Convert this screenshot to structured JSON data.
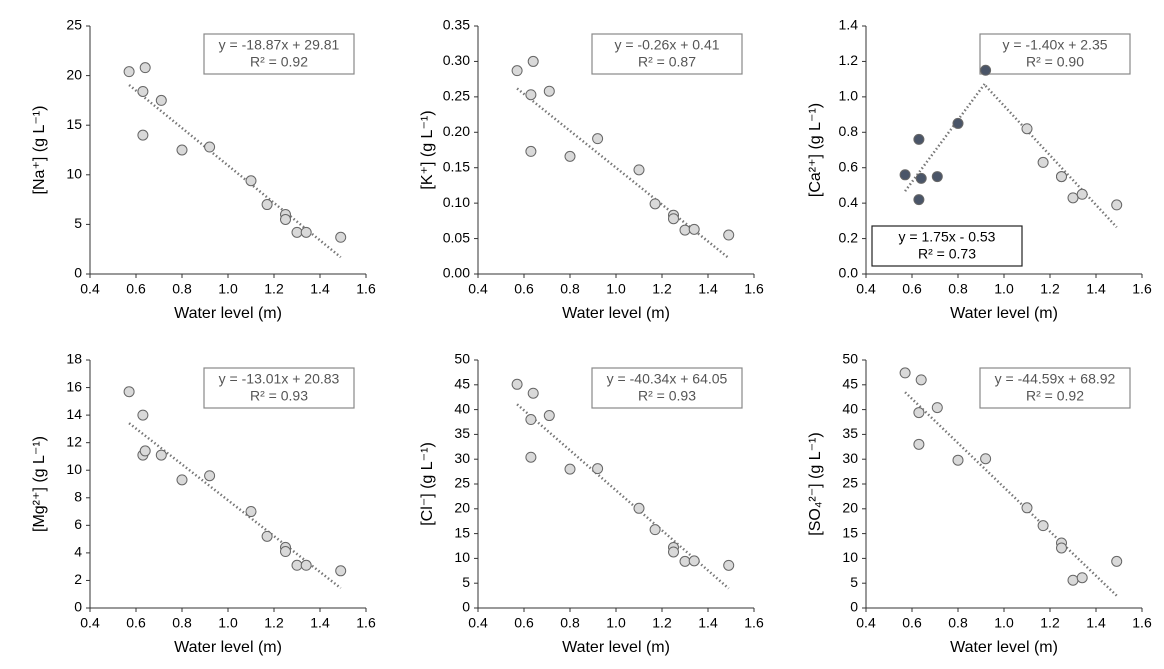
{
  "chart_data": [
    {
      "type": "scatter",
      "xlabel": "Water level (m)",
      "ylabel": "[Na⁺] (g L⁻¹)",
      "x": [
        0.57,
        0.63,
        0.63,
        0.64,
        0.71,
        0.8,
        0.92,
        1.1,
        1.17,
        1.25,
        1.25,
        1.3,
        1.34,
        1.49
      ],
      "series": [
        {
          "color": "#d9d9d9",
          "values": [
            20.4,
            18.4,
            14.0,
            20.8,
            17.5,
            12.5,
            12.8,
            9.4,
            7.0,
            6.0,
            5.5,
            4.2,
            4.2,
            3.7
          ]
        }
      ],
      "trendlines": [
        {
          "equation": "y = -18.87x + 29.81",
          "r2": "R² = 0.92",
          "slope": -18.87,
          "intercept": 29.81,
          "xlim": [
            0.57,
            1.49
          ],
          "label_corner": "top-right"
        }
      ],
      "xlim": [
        0.4,
        1.6
      ],
      "xticks": [
        0.4,
        0.6,
        0.8,
        {
          "value": 1,
          "label": "1.0"
        },
        1.2,
        1.4,
        1.6
      ],
      "ylim": [
        0,
        25
      ],
      "yticks": [
        0,
        5,
        10,
        15,
        20,
        25
      ]
    },
    {
      "type": "scatter",
      "xlabel": "Water level (m)",
      "ylabel": "[K⁺] (g L⁻¹)",
      "x": [
        0.57,
        0.63,
        0.63,
        0.64,
        0.71,
        0.8,
        0.92,
        1.1,
        1.17,
        1.25,
        1.25,
        1.3,
        1.34,
        1.49
      ],
      "series": [
        {
          "color": "#d9d9d9",
          "values": [
            0.287,
            0.253,
            0.173,
            0.3,
            0.258,
            0.166,
            0.191,
            0.147,
            0.099,
            0.083,
            0.078,
            0.062,
            0.063,
            0.055
          ]
        }
      ],
      "trendlines": [
        {
          "equation": "y = -0.26x + 0.41",
          "r2": "R² = 0.87",
          "slope": -0.26,
          "intercept": 0.41,
          "xlim": [
            0.57,
            1.49
          ],
          "label_corner": "top-right"
        }
      ],
      "xlim": [
        0.4,
        1.6
      ],
      "xticks": [
        0.4,
        0.6,
        0.8,
        {
          "value": 1,
          "label": "1.0"
        },
        1.2,
        1.4,
        1.6
      ],
      "ylim": [
        0,
        0.35
      ],
      "yticks": [
        {
          "value": 0,
          "label": "0.00"
        },
        0.05,
        {
          "value": 0.1,
          "label": "0.10"
        },
        0.15,
        {
          "value": 0.2,
          "label": "0.20"
        },
        0.25,
        {
          "value": 0.3,
          "label": "0.30"
        },
        0.35
      ]
    },
    {
      "type": "scatter",
      "xlabel": "Water level (m)",
      "ylabel": "[Ca²⁺] (g L⁻¹)",
      "x": [
        0.57,
        0.63,
        0.63,
        0.64,
        0.71,
        0.8,
        0.92,
        1.1,
        1.17,
        1.25,
        1.25,
        1.3,
        1.34,
        1.49
      ],
      "series": [
        {
          "color": "#4a5568",
          "values": [
            0.56,
            0.76,
            0.42,
            0.54,
            0.55,
            0.85,
            1.15,
            null,
            null,
            null,
            null,
            null,
            null,
            null
          ]
        },
        {
          "color": "#d9d9d9",
          "values": [
            null,
            null,
            null,
            null,
            null,
            null,
            null,
            0.82,
            0.63,
            0.55,
            0.55,
            0.43,
            0.45,
            0.39
          ]
        }
      ],
      "trendlines": [
        {
          "equation": "y = 1.75x - 0.53",
          "r2": "R² = 0.73",
          "slope": 1.75,
          "intercept": -0.53,
          "xlim": [
            0.57,
            0.92
          ],
          "label_corner": "bottom-left"
        },
        {
          "equation": "y = -1.40x + 2.35",
          "r2": "R² = 0.90",
          "slope": -1.4,
          "intercept": 2.35,
          "xlim": [
            0.92,
            1.49
          ],
          "label_corner": "top-right"
        }
      ],
      "xlim": [
        0.4,
        1.6
      ],
      "xticks": [
        0.4,
        0.6,
        0.8,
        {
          "value": 1,
          "label": "1.0"
        },
        1.2,
        1.4,
        1.6
      ],
      "ylim": [
        0,
        1.4
      ],
      "yticks": [
        {
          "value": 0,
          "label": "0.0"
        },
        0.2,
        0.4,
        0.6,
        0.8,
        {
          "value": 1,
          "label": "1.0"
        },
        1.2,
        1.4
      ]
    },
    {
      "type": "scatter",
      "xlabel": "Water level (m)",
      "ylabel": "[Mg²⁺] (g L⁻¹)",
      "x": [
        0.57,
        0.63,
        0.63,
        0.64,
        0.71,
        0.8,
        0.92,
        1.1,
        1.17,
        1.25,
        1.25,
        1.3,
        1.34,
        1.49
      ],
      "series": [
        {
          "color": "#d9d9d9",
          "values": [
            15.7,
            11.1,
            14.0,
            11.4,
            11.1,
            9.3,
            9.6,
            7.0,
            5.2,
            4.4,
            4.1,
            3.1,
            3.1,
            2.7
          ]
        }
      ],
      "trendlines": [
        {
          "equation": "y = -13.01x + 20.83",
          "r2": "R² = 0.93",
          "slope": -13.01,
          "intercept": 20.83,
          "xlim": [
            0.57,
            1.49
          ],
          "label_corner": "top-right"
        }
      ],
      "xlim": [
        0.4,
        1.6
      ],
      "xticks": [
        0.4,
        0.6,
        0.8,
        {
          "value": 1,
          "label": "1.0"
        },
        1.2,
        1.4,
        1.6
      ],
      "ylim": [
        0,
        18
      ],
      "yticks": [
        0,
        2,
        4,
        6,
        8,
        10,
        12,
        14,
        16,
        18
      ]
    },
    {
      "type": "scatter",
      "xlabel": "Water level (m)",
      "ylabel": "[Cl⁻] (g L⁻¹)",
      "x": [
        0.57,
        0.63,
        0.63,
        0.64,
        0.71,
        0.8,
        0.92,
        1.1,
        1.17,
        1.25,
        1.25,
        1.3,
        1.34,
        1.49
      ],
      "series": [
        {
          "color": "#d9d9d9",
          "values": [
            45.1,
            38.0,
            30.4,
            43.3,
            38.8,
            28.0,
            28.1,
            20.1,
            15.8,
            12.2,
            11.3,
            9.4,
            9.5,
            8.6
          ]
        }
      ],
      "trendlines": [
        {
          "equation": "y = -40.34x + 64.05",
          "r2": "R² = 0.93",
          "slope": -40.34,
          "intercept": 64.05,
          "xlim": [
            0.57,
            1.49
          ],
          "label_corner": "top-right"
        }
      ],
      "xlim": [
        0.4,
        1.6
      ],
      "xticks": [
        0.4,
        0.6,
        0.8,
        {
          "value": 1,
          "label": "1.0"
        },
        1.2,
        1.4,
        1.6
      ],
      "ylim": [
        0,
        50
      ],
      "yticks": [
        0,
        5,
        10,
        15,
        20,
        25,
        30,
        35,
        40,
        45,
        50
      ]
    },
    {
      "type": "scatter",
      "xlabel": "Water level (m)",
      "ylabel": "[SO₄²⁻] (g L⁻¹)",
      "x": [
        0.57,
        0.63,
        0.63,
        0.64,
        0.71,
        0.8,
        0.92,
        1.1,
        1.17,
        1.25,
        1.25,
        1.3,
        1.34,
        1.49
      ],
      "series": [
        {
          "color": "#d9d9d9",
          "values": [
            47.4,
            33.0,
            39.4,
            46.0,
            40.4,
            29.8,
            30.1,
            20.2,
            16.6,
            13.1,
            12.1,
            5.6,
            6.1,
            9.4
          ]
        }
      ],
      "trendlines": [
        {
          "equation": "y = -44.59x + 68.92",
          "r2": "R² = 0.92",
          "slope": -44.59,
          "intercept": 68.92,
          "xlim": [
            0.57,
            1.49
          ],
          "label_corner": "top-right"
        }
      ],
      "xlim": [
        0.4,
        1.6
      ],
      "xticks": [
        0.4,
        0.6,
        0.8,
        {
          "value": 1,
          "label": "1.0"
        },
        1.2,
        1.4,
        1.6
      ],
      "ylim": [
        0,
        50
      ],
      "yticks": [
        0,
        5,
        10,
        15,
        20,
        25,
        30,
        35,
        40,
        45,
        50
      ]
    }
  ]
}
